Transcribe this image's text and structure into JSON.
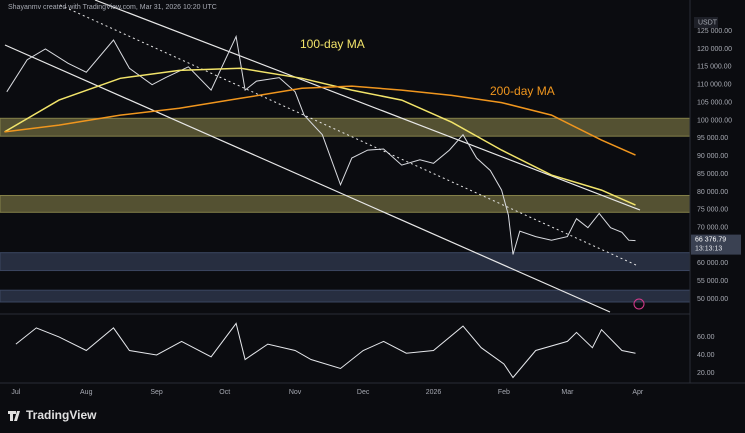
{
  "header": "Shayanmv created with TradingView.com, Mar 31, 2026 10:20 UTC",
  "currency": "USDT",
  "logo": "TradingView",
  "chart_data": [
    {
      "type": "line",
      "xlim": [
        "2025-06-24",
        "2026-04-24"
      ],
      "ylim": [
        46400,
        133700
      ],
      "yticks": [
        {
          "value": 125000,
          "label": "125 000.00"
        },
        {
          "value": 120000,
          "label": "120 000.00"
        },
        {
          "value": 115000,
          "label": "115 000.00"
        },
        {
          "value": 110000,
          "label": "110 000.00"
        },
        {
          "value": 105000,
          "label": "105 000.00"
        },
        {
          "value": 100000,
          "label": "100 000.00"
        },
        {
          "value": 95000,
          "label": "95 000.00"
        },
        {
          "value": 90000,
          "label": "90 000.00"
        },
        {
          "value": 85000,
          "label": "85 000.00"
        },
        {
          "value": 80000,
          "label": "80 000.00"
        },
        {
          "value": 75000,
          "label": "75 000.00"
        },
        {
          "value": 70000,
          "label": "70 000.00"
        },
        {
          "value": 65000,
          "label": "65 000.00"
        },
        {
          "value": 60000,
          "label": "60 000.00"
        },
        {
          "value": 55000,
          "label": "55 000.00"
        },
        {
          "value": 50000,
          "label": "50 000.00"
        }
      ],
      "grid": true,
      "zones": [
        {
          "from": 95600,
          "to": 100600,
          "color": "#85814a"
        },
        {
          "from": 74300,
          "to": 79000,
          "color": "#85814a"
        },
        {
          "from": 58000,
          "to": 63000,
          "color": "#3b4660"
        },
        {
          "from": 49200,
          "to": 52500,
          "color": "#3b4660"
        }
      ],
      "last": {
        "value": 66376.79,
        "label": "66 376.79",
        "timer": "13:13:13"
      },
      "series": [
        {
          "color": "#d9dbe0",
          "x": [
            "2025-06-27",
            "2025-07-06",
            "2025-07-14",
            "2025-07-24",
            "2025-08-01",
            "2025-08-13",
            "2025-08-20",
            "2025-08-30",
            "2025-09-05",
            "2025-09-15",
            "2025-09-25",
            "2025-10-06",
            "2025-10-10",
            "2025-10-15",
            "2025-10-25",
            "2025-11-01",
            "2025-11-05",
            "2025-11-13",
            "2025-11-21",
            "2025-11-26",
            "2025-12-03",
            "2025-12-10",
            "2025-12-18",
            "2025-12-26",
            "2026-01-01",
            "2026-01-08",
            "2026-01-14",
            "2026-01-20",
            "2026-01-26",
            "2026-01-31",
            "2026-02-03",
            "2026-02-05",
            "2026-02-08",
            "2026-02-15",
            "2026-02-22",
            "2026-03-01",
            "2026-03-05",
            "2026-03-10",
            "2026-03-15",
            "2026-03-20",
            "2026-03-25",
            "2026-03-28",
            "2026-03-31"
          ],
          "values": [
            108000,
            117000,
            120000,
            116000,
            113500,
            122500,
            114600,
            110000,
            112000,
            115000,
            108500,
            123500,
            108500,
            111000,
            112000,
            108000,
            101500,
            96000,
            82000,
            89500,
            91700,
            92000,
            87500,
            89000,
            88000,
            91700,
            96000,
            89500,
            86000,
            80500,
            73500,
            62500,
            69000,
            67500,
            66500,
            67500,
            72500,
            70000,
            74000,
            70000,
            68700,
            66500,
            66376.79
          ]
        },
        {
          "name": "100-day MA",
          "color": "#f2e46a",
          "x": [
            "2025-06-26",
            "2025-07-20",
            "2025-08-16",
            "2025-09-11",
            "2025-10-08",
            "2025-11-04",
            "2025-11-26",
            "2025-12-18",
            "2026-01-09",
            "2026-01-31",
            "2026-02-22",
            "2026-03-16",
            "2026-03-31"
          ],
          "values": [
            96800,
            105700,
            111800,
            114000,
            114600,
            111800,
            108500,
            105700,
            99500,
            91700,
            84700,
            80500,
            76300
          ]
        },
        {
          "name": "200-day MA",
          "color": "#f0961e",
          "x": [
            "2025-06-26",
            "2025-07-20",
            "2025-08-16",
            "2025-09-11",
            "2025-10-08",
            "2025-11-04",
            "2025-11-26",
            "2025-12-18",
            "2026-01-09",
            "2026-01-31",
            "2026-02-22",
            "2026-03-16",
            "2026-03-31"
          ],
          "values": [
            96800,
            98700,
            101500,
            103400,
            106200,
            109000,
            109600,
            108500,
            107000,
            105000,
            101500,
            94500,
            90300
          ]
        }
      ]
    },
    {
      "type": "line",
      "xlim": [
        "2025-06-24",
        "2026-04-24"
      ],
      "ylim": [
        10,
        81
      ],
      "yticks": [
        {
          "value": 60,
          "label": "60.00"
        },
        {
          "value": 40,
          "label": "40.00"
        },
        {
          "value": 20,
          "label": "20.00"
        }
      ],
      "xticks": [
        {
          "value": "2025-07-01",
          "label": "Jul"
        },
        {
          "value": "2025-08-01",
          "label": "Aug"
        },
        {
          "value": "2025-09-01",
          "label": "Sep"
        },
        {
          "value": "2025-10-01",
          "label": "Oct"
        },
        {
          "value": "2025-11-01",
          "label": "Nov"
        },
        {
          "value": "2025-12-01",
          "label": "Dec"
        },
        {
          "value": "2026-01-01",
          "label": "2026"
        },
        {
          "value": "2026-02-01",
          "label": "Feb"
        },
        {
          "value": "2026-03-01",
          "label": "Mar"
        },
        {
          "value": "2026-04-01",
          "label": "Apr"
        }
      ],
      "series": [
        {
          "color": "#e6e8ec",
          "x": [
            "2025-07-01",
            "2025-07-10",
            "2025-07-20",
            "2025-08-01",
            "2025-08-13",
            "2025-08-20",
            "2025-09-01",
            "2025-09-12",
            "2025-09-25",
            "2025-10-06",
            "2025-10-10",
            "2025-10-20",
            "2025-11-01",
            "2025-11-08",
            "2025-11-21",
            "2025-12-01",
            "2025-12-10",
            "2025-12-20",
            "2026-01-01",
            "2026-01-14",
            "2026-01-22",
            "2026-02-01",
            "2026-02-05",
            "2026-02-15",
            "2026-03-01",
            "2026-03-05",
            "2026-03-12",
            "2026-03-16",
            "2026-03-25",
            "2026-03-31"
          ],
          "values": [
            52,
            70,
            60,
            45,
            70,
            45,
            40,
            55,
            38,
            75,
            35,
            52,
            45,
            35,
            25,
            45,
            55,
            42,
            45,
            72,
            48,
            30,
            15,
            45,
            55,
            65,
            48,
            68,
            45,
            42
          ]
        }
      ]
    }
  ]
}
